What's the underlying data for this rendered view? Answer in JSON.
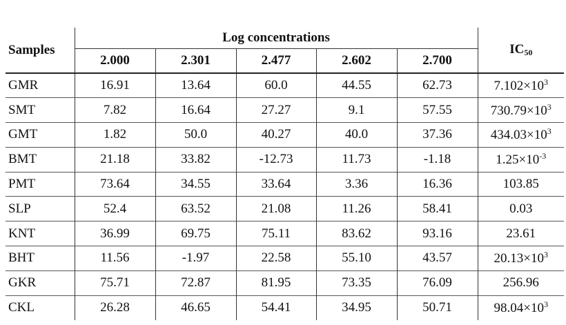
{
  "table": {
    "header": {
      "samples": "Samples",
      "group": "Log concentrations",
      "columns": [
        "2.000",
        "2.301",
        "2.477",
        "2.602",
        "2.700"
      ],
      "ic": {
        "text": "IC",
        "sub": "50"
      }
    },
    "rows": [
      [
        "GMR",
        "16.91",
        "13.64",
        "60.0",
        "44.55",
        "62.73",
        {
          "text": "7.102×10",
          "sup": "3"
        }
      ],
      [
        "SMT",
        "7.82",
        "16.64",
        "27.27",
        "9.1",
        "57.55",
        {
          "text": "730.79×10",
          "sup": "3"
        }
      ],
      [
        "GMT",
        "1.82",
        "50.0",
        "40.27",
        "40.0",
        "37.36",
        {
          "text": "434.03×10",
          "sup": "3"
        }
      ],
      [
        "BMT",
        "21.18",
        "33.82",
        "-12.73",
        "11.73",
        "-1.18",
        {
          "text": "1.25×10",
          "sup": "-3"
        }
      ],
      [
        "PMT",
        "73.64",
        "34.55",
        "33.64",
        "3.36",
        "16.36",
        "103.85"
      ],
      [
        "SLP",
        "52.4",
        "63.52",
        "21.08",
        "11.26",
        "58.41",
        "0.03"
      ],
      [
        "KNT",
        "36.99",
        "69.75",
        "75.11",
        "83.62",
        "93.16",
        "23.61"
      ],
      [
        "BHT",
        "11.56",
        "-1.97",
        "22.58",
        "55.10",
        "43.57",
        {
          "text": "20.13×10",
          "sup": "3"
        }
      ],
      [
        "GKR",
        "75.71",
        "72.87",
        "81.95",
        "73.35",
        "76.09",
        "256.96"
      ],
      [
        "CKL",
        "26.28",
        "46.65",
        "54.41",
        "34.95",
        "50.71",
        {
          "text": "98.04×10",
          "sup": "3"
        }
      ]
    ]
  }
}
